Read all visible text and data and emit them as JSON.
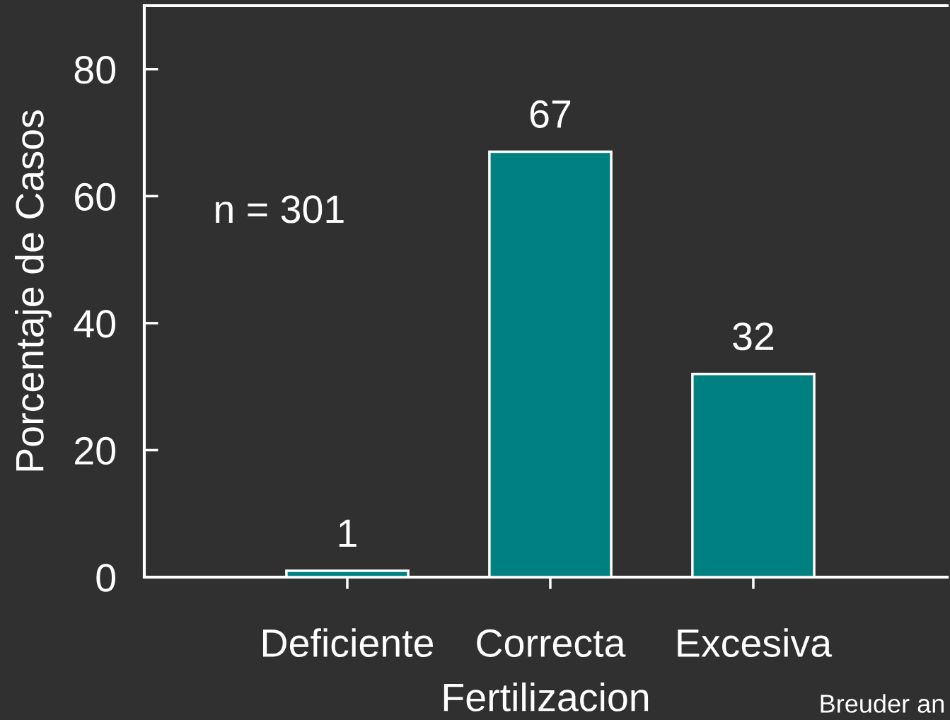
{
  "chart_data": {
    "type": "bar",
    "xlabel": "Fertilizacion",
    "ylabel": "Porcentaje de Casos",
    "categories": [
      "Deficiente",
      "Correcta",
      "Excesiva"
    ],
    "values": [
      1,
      67,
      32
    ],
    "color": "#008080",
    "ylim": [
      0,
      90
    ],
    "yticks": [
      0,
      20,
      40,
      60,
      80
    ],
    "grid": false,
    "data_labels": true,
    "annotations": [
      "n = 301",
      "Breuder an"
    ]
  }
}
